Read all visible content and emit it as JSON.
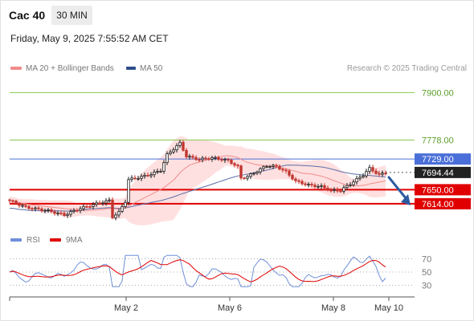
{
  "header": {
    "title": "Cac 40",
    "timeframe": "30 MIN",
    "datetime": "Friday, May 9, 2025 7:55:52 AM CET"
  },
  "legend": {
    "main": [
      {
        "label": "MA 20 + Bollinger Bands",
        "color": "#f08c8c"
      },
      {
        "label": "MA 50",
        "color": "#2e4e8c"
      }
    ],
    "rsi": [
      {
        "label": "RSI",
        "color": "#6f8fd8"
      },
      {
        "label": "9MA",
        "color": "#e00000"
      }
    ]
  },
  "credit": "Research © 2025 Trading Central",
  "colors": {
    "up": "#1a1a1a",
    "down": "#c0362f",
    "band": "#ffe0e0",
    "ma20": "#f08c8c",
    "ma50": "#5a6fa8",
    "target": "#8cc850",
    "resistance": "#4a6fd8",
    "support": "#e00000",
    "current": "#222222",
    "arrow": "#2c5aa0"
  },
  "chart_data": [
    {
      "type": "line",
      "subtype": "candlestick",
      "ylim": [
        7560,
        7940
      ],
      "x_ticks": [
        "May 2",
        "May 6",
        "May 8",
        "May 10"
      ],
      "levels": [
        {
          "label": "7900.00",
          "value": 7900.0,
          "kind": "target"
        },
        {
          "label": "7778.00",
          "value": 7778.0,
          "kind": "target"
        },
        {
          "label": "7729.00",
          "value": 7729.0,
          "kind": "resistance"
        },
        {
          "label": "7694.44",
          "value": 7694.44,
          "kind": "current"
        },
        {
          "label": "7650.00",
          "value": 7650.0,
          "kind": "support"
        },
        {
          "label": "7614.00",
          "value": 7614.0,
          "kind": "support"
        }
      ],
      "forecast_arrow": {
        "from": 7694.44,
        "to": 7614.0,
        "direction": "down"
      }
    },
    {
      "type": "line",
      "title": "RSI",
      "ylim": [
        20,
        80
      ],
      "y_ticks": [
        70,
        50,
        30
      ]
    }
  ]
}
